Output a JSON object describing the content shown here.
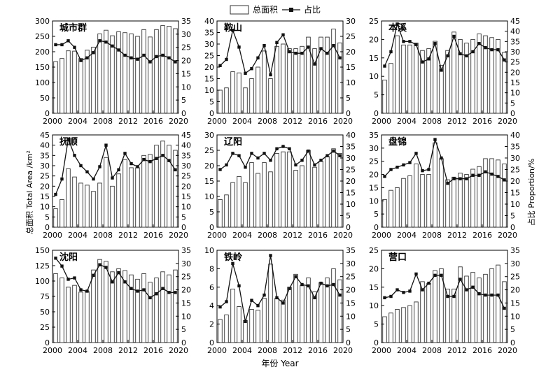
{
  "legend": {
    "bar_label": "总面积",
    "line_label": "占比"
  },
  "ylabel_left": "总面积 Total Area /km²",
  "ylabel_right": "占比 Proportion/%",
  "xlabel": "年份 Year",
  "colors": {
    "bar_fill": "#ffffff",
    "bar_stroke": "#333333",
    "line": "#111111"
  },
  "chart_data": [
    {
      "type": "bar",
      "title": "城市群",
      "x": [
        2000,
        2001,
        2002,
        2003,
        2004,
        2005,
        2006,
        2007,
        2008,
        2009,
        2010,
        2011,
        2012,
        2013,
        2014,
        2015,
        2016,
        2017,
        2018,
        2019
      ],
      "bar_values": [
        168,
        178,
        203,
        202,
        178,
        205,
        215,
        258,
        270,
        252,
        265,
        262,
        258,
        250,
        272,
        248,
        272,
        285,
        283,
        275
      ],
      "line_values": [
        26,
        26,
        27.5,
        25,
        20,
        21,
        23,
        27.5,
        27,
        25.5,
        24,
        22,
        21,
        20.5,
        22,
        19.5,
        21.5,
        22,
        21,
        19.5
      ],
      "ylim_left": [
        0,
        300
      ],
      "yticks_left": [
        0,
        50,
        100,
        150,
        200,
        250,
        300
      ],
      "ylim_right": [
        0,
        35
      ],
      "yticks_right": [
        0,
        5,
        10,
        15,
        20,
        25,
        30,
        35
      ],
      "xticks": [
        2000,
        2004,
        2008,
        2012,
        2016,
        2020
      ]
    },
    {
      "type": "bar",
      "title": "鞍山",
      "x": [
        2000,
        2001,
        2002,
        2003,
        2004,
        2005,
        2006,
        2007,
        2008,
        2009,
        2010,
        2011,
        2012,
        2013,
        2014,
        2015,
        2016,
        2017,
        2018,
        2019
      ],
      "bar_values": [
        10,
        11,
        18,
        17.5,
        11,
        15,
        20,
        27,
        15,
        29,
        30,
        28,
        28,
        29,
        33,
        28,
        33,
        33,
        36.5,
        30.5
      ],
      "line_values": [
        15.5,
        17.5,
        27,
        21.5,
        13,
        14.5,
        18,
        22,
        12.5,
        23,
        25.5,
        20,
        19.5,
        19.5,
        21.5,
        16,
        21,
        19.5,
        22,
        18
      ],
      "ylim_left": [
        0,
        40
      ],
      "yticks_left": [
        0,
        5,
        10,
        15,
        20,
        25,
        30,
        35,
        40
      ],
      "ylim_right": [
        0,
        30
      ],
      "yticks_right": [
        0,
        5,
        10,
        15,
        20,
        25,
        30
      ],
      "xticks": [
        2000,
        2004,
        2008,
        2012,
        2016,
        2020
      ]
    },
    {
      "type": "bar",
      "title": "本溪",
      "x": [
        2000,
        2001,
        2002,
        2003,
        2004,
        2005,
        2006,
        2007,
        2008,
        2009,
        2010,
        2011,
        2012,
        2013,
        2014,
        2015,
        2016,
        2017,
        2018,
        2019
      ],
      "bar_values": [
        9,
        13.5,
        21,
        18.5,
        18.5,
        19,
        17,
        17.5,
        19.5,
        13,
        17,
        22,
        20,
        19,
        20,
        21.5,
        21,
        20.5,
        20,
        16.5
      ],
      "line_values": [
        23,
        30,
        43.5,
        35,
        35,
        33.5,
        25,
        26.5,
        34,
        21,
        28,
        37.5,
        29,
        28,
        30,
        34,
        32,
        31,
        31,
        26
      ],
      "ylim_left": [
        0,
        25
      ],
      "yticks_left": [
        0,
        5,
        10,
        15,
        20,
        25
      ],
      "ylim_right": [
        0,
        45
      ],
      "yticks_right": [
        0,
        5,
        10,
        15,
        20,
        25,
        30,
        35,
        40,
        45
      ],
      "xticks": [
        2000,
        2004,
        2008,
        2012,
        2016,
        2020
      ]
    },
    {
      "type": "bar",
      "title": "抚顺",
      "x": [
        2000,
        2001,
        2002,
        2003,
        2004,
        2005,
        2006,
        2007,
        2008,
        2009,
        2010,
        2011,
        2012,
        2013,
        2014,
        2015,
        2016,
        2017,
        2018,
        2019
      ],
      "bar_values": [
        9,
        13.5,
        28.5,
        24.5,
        21.5,
        20.5,
        17.5,
        21.5,
        34,
        20,
        26,
        33,
        29,
        29,
        35,
        35.5,
        40,
        42,
        40,
        37.5
      ],
      "line_values": [
        16,
        23.5,
        43,
        35,
        30,
        27,
        23.5,
        29.5,
        40,
        24,
        28,
        36,
        31,
        29.5,
        33,
        32,
        33.5,
        35,
        32.5,
        28
      ],
      "ylim_left": [
        0,
        45
      ],
      "yticks_left": [
        0,
        5,
        10,
        15,
        20,
        25,
        30,
        35,
        40,
        45
      ],
      "ylim_right": [
        0,
        45
      ],
      "yticks_right": [
        0,
        5,
        10,
        15,
        20,
        25,
        30,
        35,
        40,
        45
      ],
      "xticks": [
        2000,
        2004,
        2008,
        2012,
        2016,
        2020
      ]
    },
    {
      "type": "bar",
      "title": "辽阳",
      "x": [
        2000,
        2001,
        2002,
        2003,
        2004,
        2005,
        2006,
        2007,
        2008,
        2009,
        2010,
        2011,
        2012,
        2013,
        2014,
        2015,
        2016,
        2017,
        2018,
        2019
      ],
      "bar_values": [
        9,
        10.5,
        14.5,
        16.5,
        14.5,
        21,
        17.5,
        21,
        18,
        24,
        24.5,
        24.5,
        18.5,
        20,
        25,
        19.5,
        21.5,
        23,
        25.5,
        24
      ],
      "line_values": [
        25,
        27,
        32,
        31,
        26,
        32,
        30,
        32,
        29,
        34,
        35,
        34,
        27,
        29,
        33,
        27,
        29,
        31,
        33,
        31
      ],
      "ylim_left": [
        0,
        30
      ],
      "yticks_left": [
        0,
        5,
        10,
        15,
        20,
        25,
        30
      ],
      "ylim_right": [
        0,
        40
      ],
      "yticks_right": [
        0,
        5,
        10,
        15,
        20,
        25,
        30,
        35,
        40
      ],
      "xticks": [
        2000,
        2004,
        2008,
        2012,
        2016,
        2020
      ]
    },
    {
      "type": "bar",
      "title": "盘锦",
      "x": [
        2000,
        2001,
        2002,
        2003,
        2004,
        2005,
        2006,
        2007,
        2008,
        2009,
        2010,
        2011,
        2012,
        2013,
        2014,
        2015,
        2016,
        2017,
        2018,
        2019
      ],
      "bar_values": [
        10.5,
        14,
        15,
        18.5,
        19.5,
        24,
        20,
        20,
        32,
        26,
        18,
        19,
        20.5,
        20,
        22,
        23,
        26,
        26,
        25.5,
        24
      ],
      "line_values": [
        22,
        25,
        26,
        27,
        28,
        32,
        24.5,
        25,
        38,
        30,
        19,
        21,
        21,
        21,
        22.5,
        22.5,
        24,
        23,
        22,
        20.5
      ],
      "ylim_left": [
        0,
        35
      ],
      "yticks_left": [
        0,
        5,
        10,
        15,
        20,
        25,
        30,
        35
      ],
      "ylim_right": [
        0,
        40
      ],
      "yticks_right": [
        0,
        5,
        10,
        15,
        20,
        25,
        30,
        35,
        40
      ],
      "xticks": [
        2000,
        2004,
        2008,
        2012,
        2016,
        2020
      ]
    },
    {
      "type": "bar",
      "title": "沈阳",
      "x": [
        2000,
        2001,
        2002,
        2003,
        2004,
        2005,
        2006,
        2007,
        2008,
        2009,
        2010,
        2011,
        2012,
        2013,
        2014,
        2015,
        2016,
        2017,
        2018,
        2019
      ],
      "bar_values": [
        112,
        105,
        90,
        93,
        82,
        83,
        118,
        135,
        132,
        115,
        120,
        117,
        110,
        103,
        112,
        98,
        105,
        115,
        110,
        118
      ],
      "line_values": [
        32,
        29,
        24,
        24.5,
        20,
        19.5,
        25.5,
        29.5,
        28.5,
        23,
        26.5,
        23,
        20.5,
        19.5,
        20,
        17,
        18.5,
        20.5,
        19,
        19
      ],
      "ylim_left": [
        0,
        150
      ],
      "yticks_left": [
        0,
        25,
        50,
        75,
        100,
        125,
        150
      ],
      "ylim_right": [
        0,
        35
      ],
      "yticks_right": [
        0,
        5,
        10,
        15,
        20,
        25,
        30,
        35
      ],
      "xticks": [
        2000,
        2004,
        2008,
        2012,
        2016,
        2020
      ]
    },
    {
      "type": "bar",
      "title": "铁岭",
      "x": [
        2000,
        2001,
        2002,
        2003,
        2004,
        2005,
        2006,
        2007,
        2008,
        2009,
        2010,
        2011,
        2012,
        2013,
        2014,
        2015,
        2016,
        2017,
        2018,
        2019
      ],
      "bar_values": [
        2.5,
        3,
        5.8,
        3.9,
        2.4,
        3.6,
        3.5,
        4.8,
        8.5,
        4.8,
        4.6,
        6,
        7.4,
        6.2,
        7,
        5.5,
        6.5,
        7,
        8,
        6.8
      ],
      "line_values": [
        13.5,
        15.5,
        30,
        21.5,
        8,
        16,
        14,
        18,
        33,
        17,
        15,
        20.5,
        25,
        22,
        21.5,
        17,
        22.5,
        21.5,
        22,
        18
      ],
      "ylim_left": [
        0,
        10
      ],
      "yticks_left": [
        0,
        2,
        4,
        6,
        8,
        10
      ],
      "ylim_right": [
        0,
        35
      ],
      "yticks_right": [
        0,
        5,
        10,
        15,
        20,
        25,
        30,
        35
      ],
      "xticks": [
        2000,
        2004,
        2008,
        2012,
        2016,
        2020
      ]
    },
    {
      "type": "bar",
      "title": "营口",
      "x": [
        2000,
        2001,
        2002,
        2003,
        2004,
        2005,
        2006,
        2007,
        2008,
        2009,
        2010,
        2011,
        2012,
        2013,
        2014,
        2015,
        2016,
        2017,
        2018,
        2019
      ],
      "bar_values": [
        7,
        8,
        9,
        9.5,
        10,
        11,
        16.5,
        16,
        19.5,
        20,
        14.5,
        14.5,
        20.5,
        18,
        19,
        17.5,
        18.5,
        20,
        21,
        16.5
      ],
      "line_values": [
        17,
        17.5,
        20,
        19,
        19.5,
        26,
        20,
        22.5,
        25.5,
        25.5,
        17.5,
        17.5,
        24,
        20,
        21,
        18.5,
        18,
        18,
        18,
        13
      ],
      "ylim_left": [
        0,
        25
      ],
      "yticks_left": [
        0,
        5,
        10,
        15,
        20,
        25
      ],
      "ylim_right": [
        0,
        35
      ],
      "yticks_right": [
        0,
        5,
        10,
        15,
        20,
        25,
        30,
        35
      ],
      "xticks": [
        2000,
        2004,
        2008,
        2012,
        2016,
        2020
      ]
    }
  ]
}
